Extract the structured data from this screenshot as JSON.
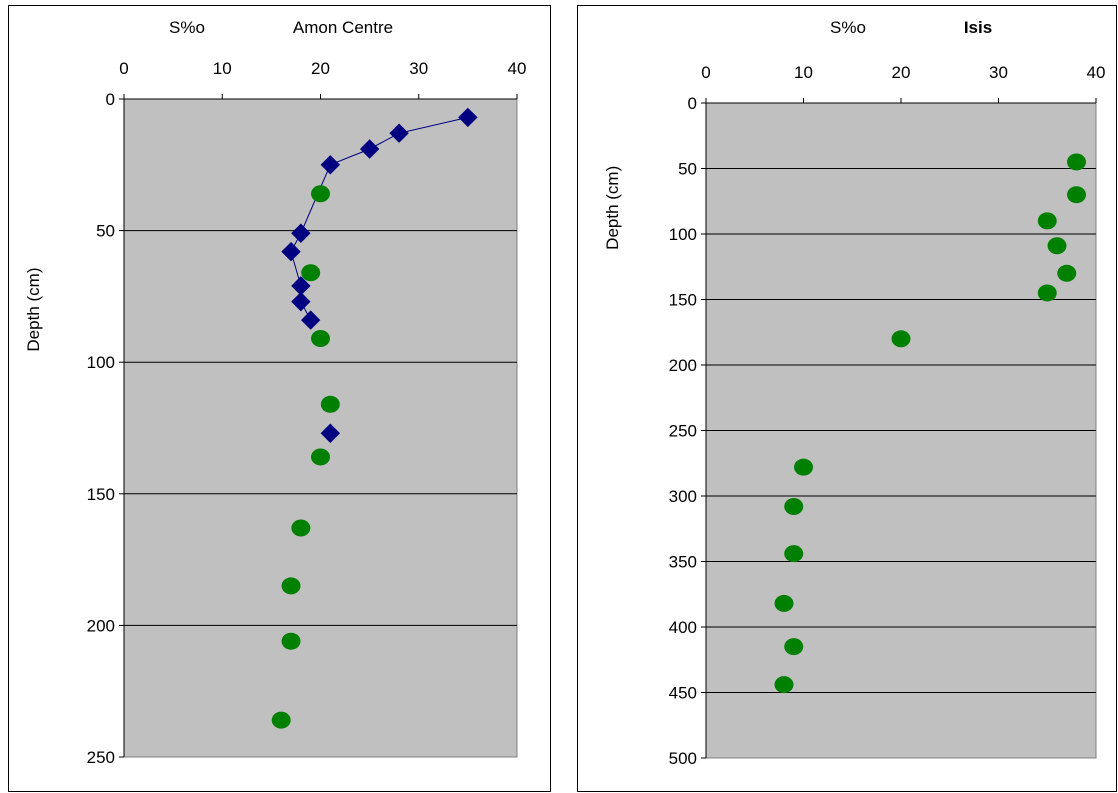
{
  "chart_data": [
    {
      "type": "scatter",
      "title": "Amon Centre",
      "xlabel": "S%o",
      "ylabel": "Depth (cm)",
      "xlim": [
        0,
        40
      ],
      "ylim": [
        0,
        250
      ],
      "y_inverted": true,
      "x_axis_position": "top",
      "x_ticks": [
        0,
        10,
        20,
        30,
        40
      ],
      "y_ticks": [
        0,
        50,
        100,
        150,
        200,
        250
      ],
      "grid": "horizontal",
      "plot_background": "#c0c0c0",
      "series": [
        {
          "marker": "diamond",
          "color": "#000080",
          "connected": true,
          "points": [
            {
              "x": 35,
              "y": 7
            },
            {
              "x": 28,
              "y": 13
            },
            {
              "x": 25,
              "y": 19
            },
            {
              "x": 21,
              "y": 25
            },
            {
              "x": 18,
              "y": 51
            },
            {
              "x": 17,
              "y": 58
            },
            {
              "x": 18,
              "y": 71
            },
            {
              "x": 18,
              "y": 77
            },
            {
              "x": 19,
              "y": 84
            }
          ]
        },
        {
          "marker": "diamond",
          "color": "#000080",
          "connected": false,
          "points": [
            {
              "x": 21,
              "y": 127
            }
          ]
        },
        {
          "marker": "circle",
          "color": "#008000",
          "connected": false,
          "points": [
            {
              "x": 20,
              "y": 36
            },
            {
              "x": 19,
              "y": 66
            },
            {
              "x": 20,
              "y": 91
            },
            {
              "x": 21,
              "y": 116
            },
            {
              "x": 20,
              "y": 136
            },
            {
              "x": 18,
              "y": 163
            },
            {
              "x": 17,
              "y": 185
            },
            {
              "x": 17,
              "y": 206
            },
            {
              "x": 16,
              "y": 236
            }
          ]
        }
      ]
    },
    {
      "type": "scatter",
      "title": "Isis",
      "xlabel": "S%o",
      "ylabel": "Depth (cm)",
      "xlim": [
        0,
        40
      ],
      "ylim": [
        0,
        500
      ],
      "y_inverted": true,
      "x_axis_position": "top",
      "x_ticks": [
        0,
        10,
        20,
        30,
        40
      ],
      "y_ticks": [
        0,
        50,
        100,
        150,
        200,
        250,
        300,
        350,
        400,
        450,
        500
      ],
      "grid": "horizontal",
      "plot_background": "#c0c0c0",
      "series": [
        {
          "marker": "circle",
          "color": "#008000",
          "connected": false,
          "points": [
            {
              "x": 38,
              "y": 45
            },
            {
              "x": 38,
              "y": 70
            },
            {
              "x": 35,
              "y": 90
            },
            {
              "x": 36,
              "y": 109
            },
            {
              "x": 37,
              "y": 130
            },
            {
              "x": 35,
              "y": 145
            },
            {
              "x": 20,
              "y": 180
            },
            {
              "x": 10,
              "y": 278
            },
            {
              "x": 9,
              "y": 308
            },
            {
              "x": 9,
              "y": 344
            },
            {
              "x": 8,
              "y": 382
            },
            {
              "x": 9,
              "y": 415
            },
            {
              "x": 8,
              "y": 444
            }
          ]
        }
      ]
    }
  ]
}
